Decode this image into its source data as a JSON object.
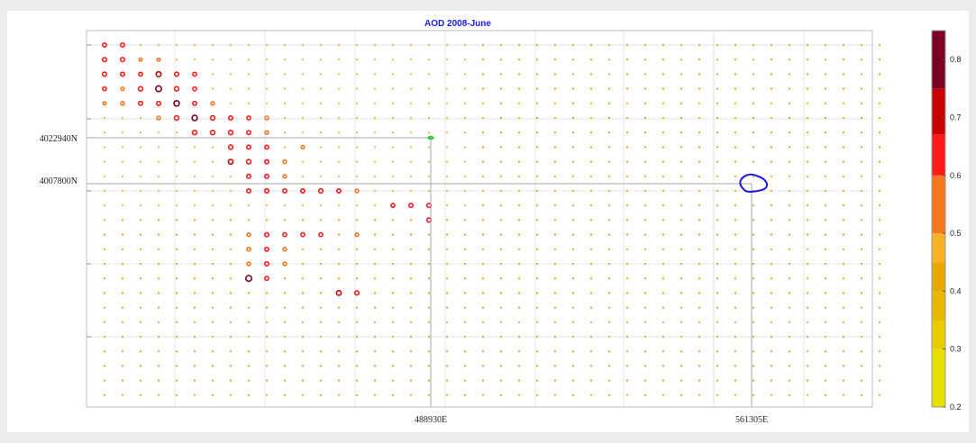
{
  "chart_data": {
    "type": "scatter",
    "title": "AOD 2008-June",
    "xlabel": "",
    "ylabel": "",
    "x_tick_labels": [
      "488930E",
      "561305E"
    ],
    "y_tick_labels": [
      "4022940N",
      "4007800N"
    ],
    "grid": true,
    "legend": "colorbar at right",
    "colorbar": {
      "ticks": [
        "0.2",
        "0.3",
        "0.4",
        "0.5",
        "0.6",
        "0.7",
        "0.8"
      ],
      "min": 0.2,
      "max": 0.85,
      "bins": [
        {
          "from": 0.2,
          "to": 0.3,
          "color": "#e6e000"
        },
        {
          "from": 0.3,
          "to": 0.35,
          "color": "#e8cc00"
        },
        {
          "from": 0.35,
          "to": 0.4,
          "color": "#e8b800"
        },
        {
          "from": 0.4,
          "to": 0.45,
          "color": "#e8a800"
        },
        {
          "from": 0.45,
          "to": 0.5,
          "color": "#f7b22a"
        },
        {
          "from": 0.5,
          "to": 0.6,
          "color": "#f5781f"
        },
        {
          "from": 0.6,
          "to": 0.67,
          "color": "#ff1a1a"
        },
        {
          "from": 0.67,
          "to": 0.75,
          "color": "#c80000"
        },
        {
          "from": 0.75,
          "to": 0.85,
          "color": "#7a0026"
        }
      ]
    },
    "grid_columns": 44,
    "grid_rows": 25,
    "high_values": [
      {
        "c": 0,
        "r": 0,
        "v": 0.62
      },
      {
        "c": 1,
        "r": 0,
        "v": 0.62
      },
      {
        "c": 0,
        "r": 1,
        "v": 0.64
      },
      {
        "c": 1,
        "r": 1,
        "v": 0.64
      },
      {
        "c": 2,
        "r": 1,
        "v": 0.52
      },
      {
        "c": 3,
        "r": 1,
        "v": 0.52
      },
      {
        "c": 0,
        "r": 2,
        "v": 0.64
      },
      {
        "c": 1,
        "r": 2,
        "v": 0.62
      },
      {
        "c": 2,
        "r": 2,
        "v": 0.6
      },
      {
        "c": 3,
        "r": 2,
        "v": 0.73
      },
      {
        "c": 4,
        "r": 2,
        "v": 0.64
      },
      {
        "c": 5,
        "r": 2,
        "v": 0.6
      },
      {
        "c": 0,
        "r": 3,
        "v": 0.6
      },
      {
        "c": 1,
        "r": 3,
        "v": 0.54
      },
      {
        "c": 2,
        "r": 3,
        "v": 0.66
      },
      {
        "c": 3,
        "r": 3,
        "v": 0.82
      },
      {
        "c": 4,
        "r": 3,
        "v": 0.66
      },
      {
        "c": 5,
        "r": 3,
        "v": 0.6
      },
      {
        "c": 0,
        "r": 4,
        "v": 0.52
      },
      {
        "c": 1,
        "r": 4,
        "v": 0.58
      },
      {
        "c": 2,
        "r": 4,
        "v": 0.62
      },
      {
        "c": 3,
        "r": 4,
        "v": 0.64
      },
      {
        "c": 4,
        "r": 4,
        "v": 0.78
      },
      {
        "c": 5,
        "r": 4,
        "v": 0.62
      },
      {
        "c": 6,
        "r": 4,
        "v": 0.56
      },
      {
        "c": 3,
        "r": 5,
        "v": 0.58
      },
      {
        "c": 4,
        "r": 5,
        "v": 0.66
      },
      {
        "c": 5,
        "r": 5,
        "v": 0.76
      },
      {
        "c": 6,
        "r": 5,
        "v": 0.66
      },
      {
        "c": 7,
        "r": 5,
        "v": 0.62
      },
      {
        "c": 8,
        "r": 5,
        "v": 0.6
      },
      {
        "c": 9,
        "r": 5,
        "v": 0.58
      },
      {
        "c": 5,
        "r": 6,
        "v": 0.66
      },
      {
        "c": 6,
        "r": 6,
        "v": 0.66
      },
      {
        "c": 7,
        "r": 6,
        "v": 0.66
      },
      {
        "c": 8,
        "r": 6,
        "v": 0.62
      },
      {
        "c": 9,
        "r": 6,
        "v": 0.56
      },
      {
        "c": 7,
        "r": 7,
        "v": 0.66
      },
      {
        "c": 8,
        "r": 7,
        "v": 0.62
      },
      {
        "c": 9,
        "r": 7,
        "v": 0.6
      },
      {
        "c": 11,
        "r": 7,
        "v": 0.55
      },
      {
        "c": 7,
        "r": 8,
        "v": 0.7
      },
      {
        "c": 8,
        "r": 8,
        "v": 0.66
      },
      {
        "c": 9,
        "r": 8,
        "v": 0.62
      },
      {
        "c": 10,
        "r": 8,
        "v": 0.56
      },
      {
        "c": 8,
        "r": 9,
        "v": 0.62
      },
      {
        "c": 9,
        "r": 9,
        "v": 0.62
      },
      {
        "c": 10,
        "r": 9,
        "v": 0.56
      },
      {
        "c": 8,
        "r": 10,
        "v": 0.62
      },
      {
        "c": 9,
        "r": 10,
        "v": 0.64
      },
      {
        "c": 10,
        "r": 10,
        "v": 0.62
      },
      {
        "c": 11,
        "r": 10,
        "v": 0.62
      },
      {
        "c": 12,
        "r": 10,
        "v": 0.64
      },
      {
        "c": 13,
        "r": 10,
        "v": 0.62
      },
      {
        "c": 14,
        "r": 10,
        "v": 0.56
      },
      {
        "c": 16,
        "r": 11,
        "v": 0.6
      },
      {
        "c": 17,
        "r": 11,
        "v": 0.64
      },
      {
        "c": 18,
        "r": 11,
        "v": 0.64
      },
      {
        "c": 18,
        "r": 12,
        "v": 0.64
      },
      {
        "c": 8,
        "r": 13,
        "v": 0.56
      },
      {
        "c": 9,
        "r": 13,
        "v": 0.62
      },
      {
        "c": 10,
        "r": 13,
        "v": 0.6
      },
      {
        "c": 11,
        "r": 13,
        "v": 0.6
      },
      {
        "c": 12,
        "r": 13,
        "v": 0.6
      },
      {
        "c": 14,
        "r": 13,
        "v": 0.56
      },
      {
        "c": 8,
        "r": 14,
        "v": 0.58
      },
      {
        "c": 9,
        "r": 14,
        "v": 0.6
      },
      {
        "c": 10,
        "r": 14,
        "v": 0.56
      },
      {
        "c": 8,
        "r": 15,
        "v": 0.56
      },
      {
        "c": 9,
        "r": 15,
        "v": 0.62
      },
      {
        "c": 10,
        "r": 15,
        "v": 0.56
      },
      {
        "c": 8,
        "r": 16,
        "v": 0.82
      },
      {
        "c": 9,
        "r": 16,
        "v": 0.6
      },
      {
        "c": 13,
        "r": 17,
        "v": 0.7
      },
      {
        "c": 14,
        "r": 17,
        "v": 0.64
      }
    ]
  }
}
